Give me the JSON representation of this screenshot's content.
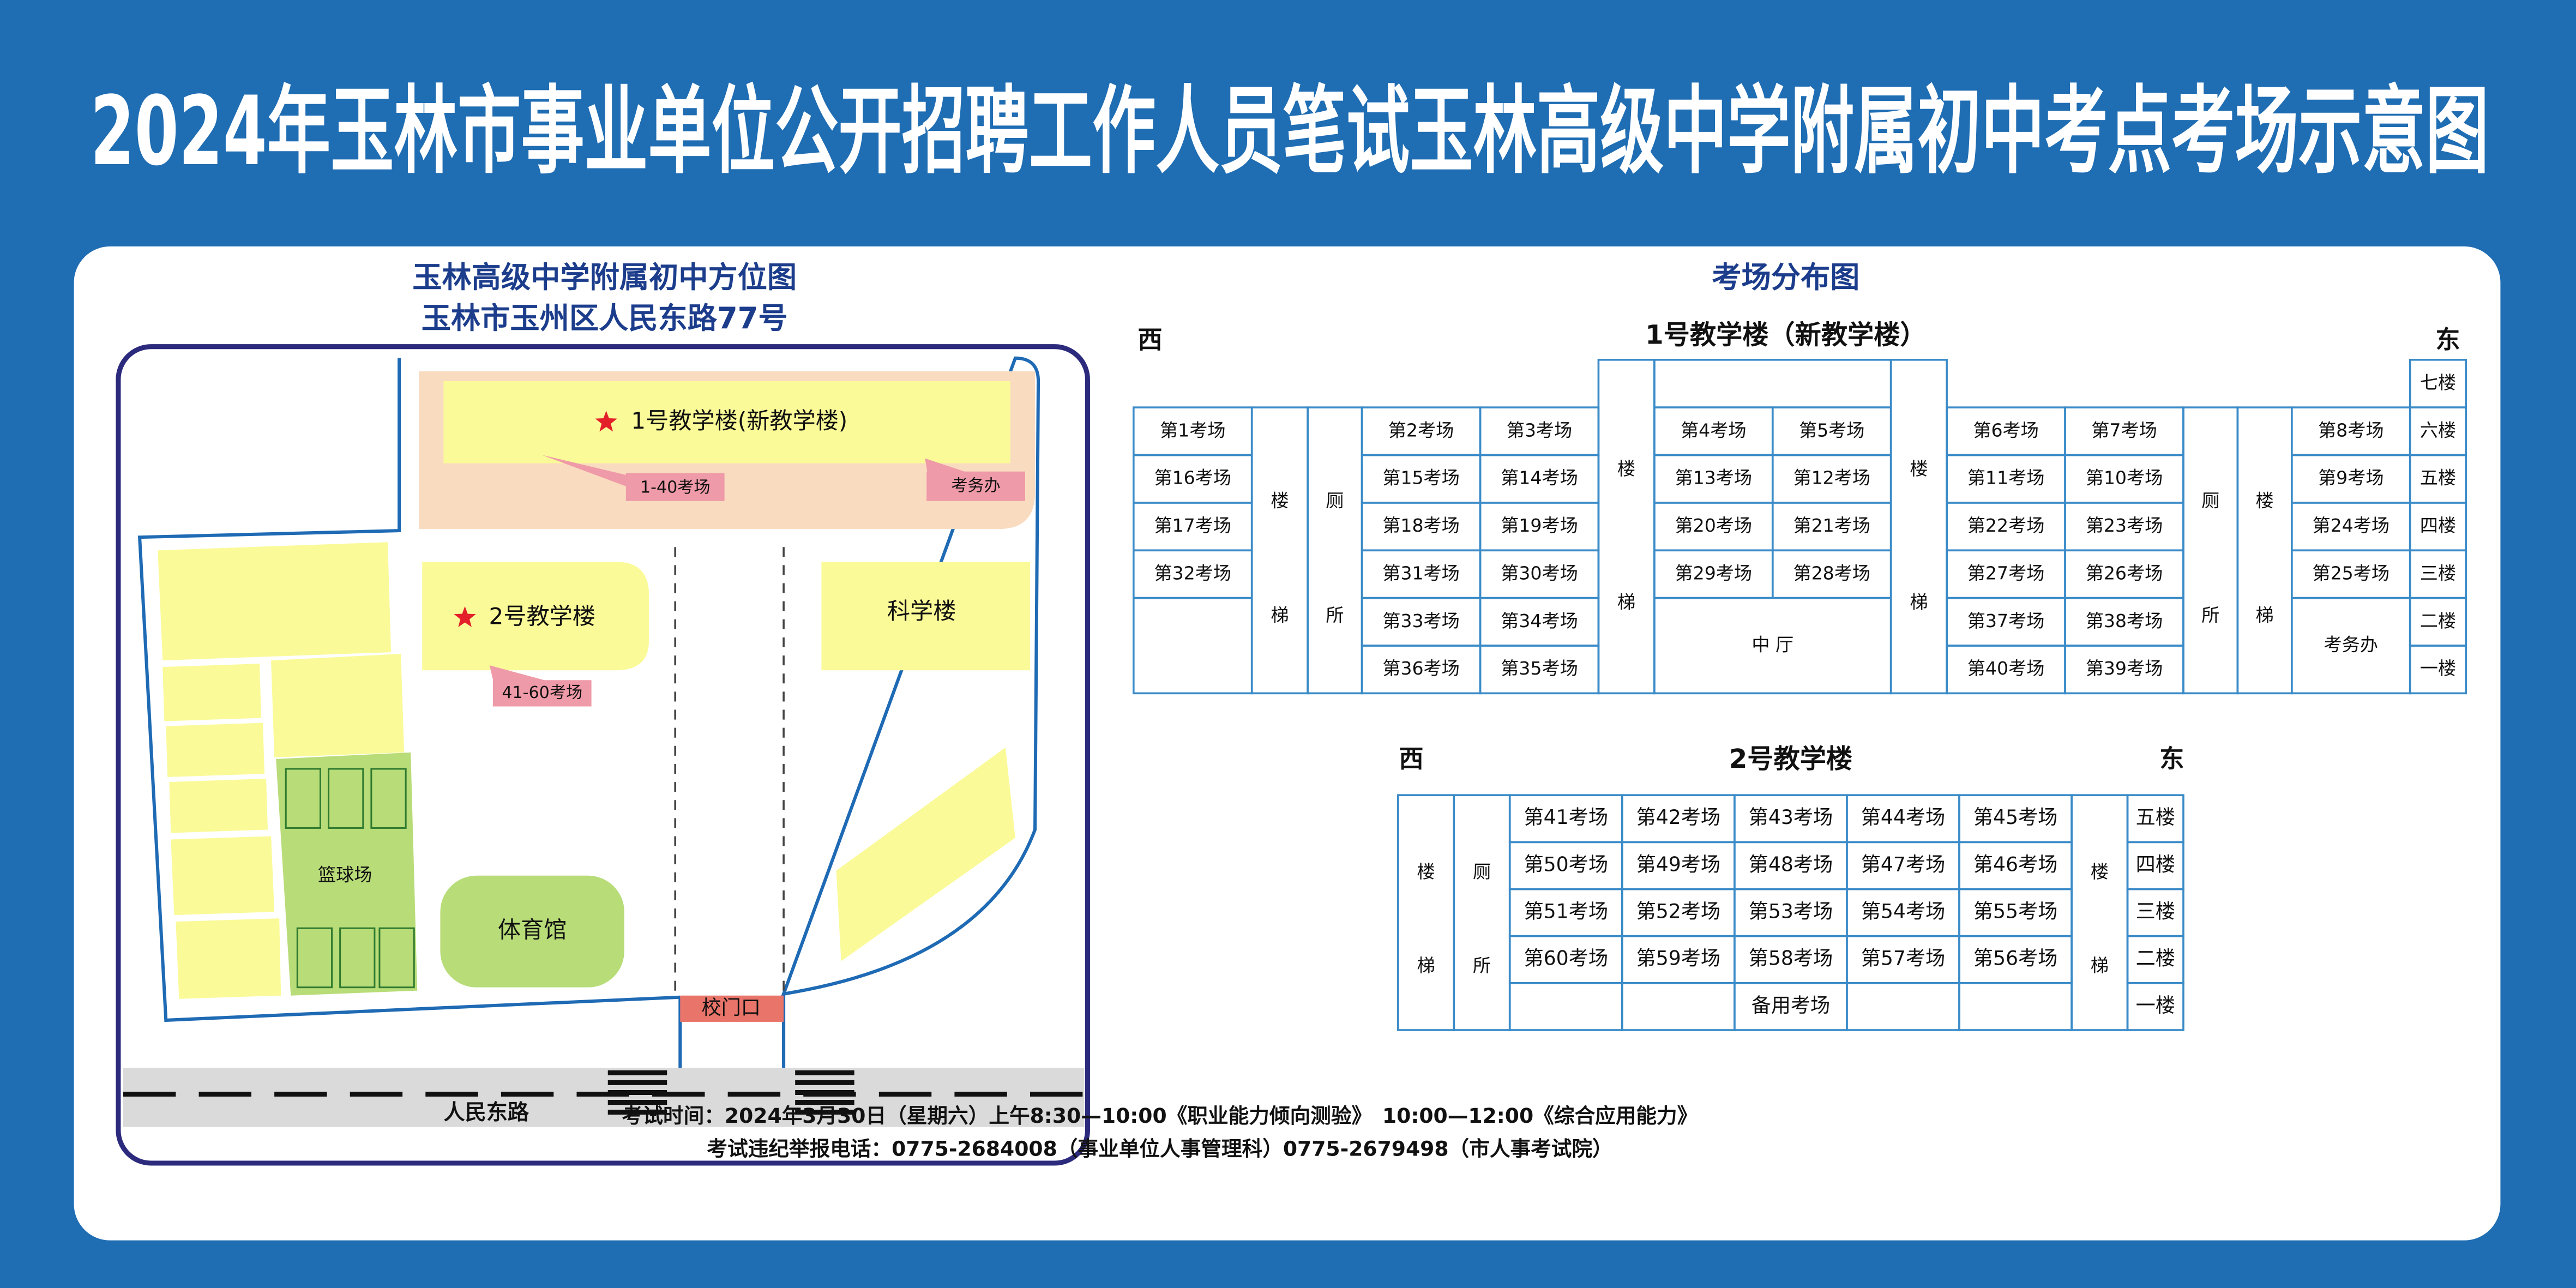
{
  "title": "2024年玉林市事业单位公开招聘工作人员笔试玉林高级中学附属初中考点考场示意图",
  "map": {
    "title_lines": [
      "玉林高级中学附属初中方位图",
      "玉林市玉州区人民东路77号"
    ],
    "building1": "1号教学楼(新教学楼)",
    "rooms1": "1-40考场",
    "office": "考务办",
    "building2": "2号教学楼",
    "rooms2": "41-60考场",
    "science": "科学楼",
    "court": "篮球场",
    "gym": "体育馆",
    "gate": "校门口",
    "road": "人民东路"
  },
  "layout_title": "考场分布图",
  "building1": {
    "name": "1号教学楼（新教学楼）",
    "west": "西",
    "east": "东",
    "stair": [
      "楼",
      "梯"
    ],
    "toilet": [
      "厕",
      "所"
    ],
    "floors": [
      "七楼",
      "六楼",
      "五楼",
      "四楼",
      "三楼",
      "二楼",
      "一楼"
    ],
    "sections": [
      {
        "rooms": [
          [
            "第1考场"
          ],
          [
            "第16考场"
          ],
          [
            "第17考场"
          ],
          [
            "第32考场"
          ]
        ]
      },
      {
        "rooms": [
          [
            "第2考场",
            "第3考场"
          ],
          [
            "第15考场",
            "第14考场"
          ],
          [
            "第18考场",
            "第19考场"
          ],
          [
            "第31考场",
            "第30考场"
          ],
          [
            "第33考场",
            "第34考场"
          ],
          [
            "第36考场",
            "第35考场"
          ]
        ]
      },
      {
        "rooms": [
          [
            "第4考场",
            "第5考场"
          ],
          [
            "第13考场",
            "第12考场"
          ],
          [
            "第20考场",
            "第21考场"
          ],
          [
            "第29考场",
            "第28考场"
          ]
        ],
        "below": "中 厅"
      },
      {
        "rooms": [
          [
            "第6考场",
            "第7考场"
          ],
          [
            "第11考场",
            "第10考场"
          ],
          [
            "第22考场",
            "第23考场"
          ],
          [
            "第27考场",
            "第26考场"
          ],
          [
            "第37考场",
            "第38考场"
          ],
          [
            "第40考场",
            "第39考场"
          ]
        ]
      },
      {
        "rooms": [
          [
            "第8考场"
          ],
          [
            "第9考场"
          ],
          [
            "第24考场"
          ],
          [
            "第25考场"
          ]
        ],
        "below": "考务办"
      }
    ]
  },
  "building2": {
    "name": "2号教学楼",
    "west": "西",
    "east": "东",
    "stair": [
      "楼",
      "梯"
    ],
    "toilet": [
      "厕",
      "所"
    ],
    "floors": [
      "五楼",
      "四楼",
      "三楼",
      "二楼",
      "一楼"
    ],
    "rooms": [
      [
        "第41考场",
        "第42考场",
        "第43考场",
        "第44考场",
        "第45考场"
      ],
      [
        "第50考场",
        "第49考场",
        "第48考场",
        "第47考场",
        "第46考场"
      ],
      [
        "第51考场",
        "第52考场",
        "第53考场",
        "第54考场",
        "第55考场"
      ],
      [
        "第60考场",
        "第59考场",
        "第58考场",
        "第57考场",
        "第56考场"
      ]
    ],
    "spare": "备用考场"
  },
  "footer": [
    "考试时间：2024年3月30日（星期六）上午8:30—10:00《职业能力倾向测验》　10:00—12:00《综合应用能力》",
    "考试违纪举报电话：0775-2684008（事业单位人事管理科）0775-2679498（市人事考试院）"
  ]
}
